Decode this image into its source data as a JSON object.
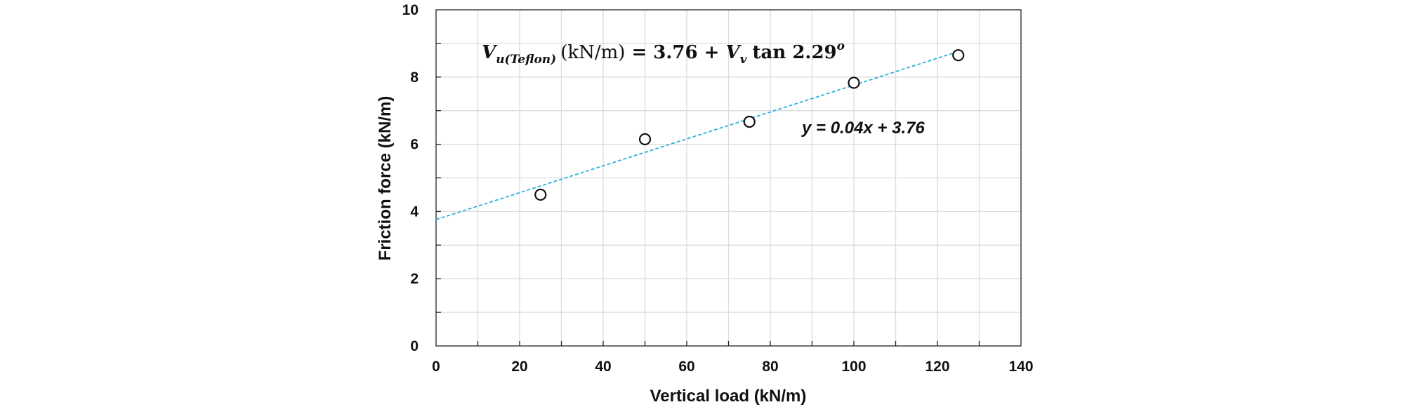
{
  "chart_data": {
    "type": "scatter",
    "xlabel": "Vertical load (kN/m)",
    "ylabel": "Friction force (kN/m)",
    "xlim": [
      0,
      140
    ],
    "ylim": [
      0,
      10
    ],
    "x_ticks": [
      "0",
      "20",
      "40",
      "60",
      "80",
      "100",
      "120",
      "140"
    ],
    "y_ticks": [
      "0",
      "2",
      "4",
      "6",
      "8",
      "10"
    ],
    "grid": true,
    "series": [
      {
        "marker": "open-circle",
        "color": "#111111",
        "points": [
          {
            "x": 25,
            "y": 4.5
          },
          {
            "x": 50,
            "y": 6.15
          },
          {
            "x": 75,
            "y": 6.67
          },
          {
            "x": 100,
            "y": 7.83
          },
          {
            "x": 125,
            "y": 8.65
          }
        ]
      }
    ],
    "trendline": {
      "style": "dashed",
      "color": "#2ab0e0",
      "slope": 0.04,
      "intercept": 3.76,
      "x_range": [
        0,
        125
      ],
      "label": "y = 0.04x + 3.76"
    },
    "formula_annotation": {
      "symbol": "V",
      "subscript": "u(Teflon)",
      "unit": "(kN/m)",
      "rhs_start": "= 3.76 +",
      "v_symbol": "V",
      "v_subscript": "v",
      "rhs_end": "tan 2.29",
      "superscript": "o"
    }
  }
}
